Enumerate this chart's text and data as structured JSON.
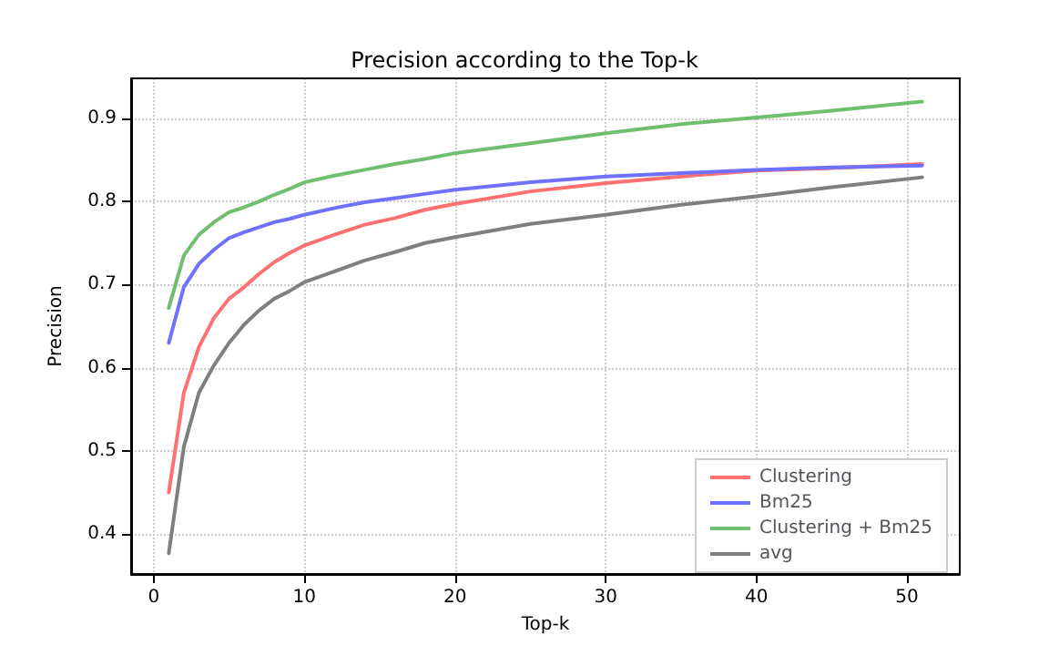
{
  "chart_data": {
    "type": "line",
    "title": "Precision according to the Top-k",
    "xlabel": "Top-k",
    "ylabel": "Precision",
    "x": [
      1,
      2,
      3,
      4,
      5,
      6,
      7,
      8,
      9,
      10,
      12,
      14,
      16,
      18,
      20,
      25,
      30,
      35,
      40,
      45,
      51
    ],
    "series": [
      {
        "name": "Clustering",
        "color": "#ff7070",
        "values": [
          0.45,
          0.57,
          0.625,
          0.66,
          0.683,
          0.697,
          0.713,
          0.727,
          0.738,
          0.747,
          0.76,
          0.772,
          0.78,
          0.79,
          0.797,
          0.812,
          0.822,
          0.83,
          0.837,
          0.84,
          0.845
        ]
      },
      {
        "name": "Bm25",
        "color": "#7070ff",
        "values": [
          0.63,
          0.697,
          0.725,
          0.742,
          0.756,
          0.763,
          0.769,
          0.775,
          0.779,
          0.784,
          0.792,
          0.799,
          0.804,
          0.809,
          0.814,
          0.823,
          0.83,
          0.834,
          0.838,
          0.841,
          0.843
        ]
      },
      {
        "name": "Clustering + Bm25",
        "color": "#70bf70",
        "values": [
          0.672,
          0.735,
          0.76,
          0.775,
          0.787,
          0.793,
          0.8,
          0.808,
          0.815,
          0.823,
          0.831,
          0.838,
          0.845,
          0.851,
          0.858,
          0.87,
          0.882,
          0.893,
          0.901,
          0.909,
          0.92
        ]
      },
      {
        "name": "avg",
        "color": "#7f7f7f",
        "values": [
          0.377,
          0.505,
          0.57,
          0.603,
          0.63,
          0.652,
          0.669,
          0.683,
          0.692,
          0.703,
          0.716,
          0.729,
          0.739,
          0.75,
          0.757,
          0.773,
          0.784,
          0.796,
          0.806,
          0.817,
          0.829
        ]
      }
    ],
    "xlim": [
      -1.5,
      53.5
    ],
    "xticks": [
      0,
      10,
      20,
      30,
      40,
      50
    ],
    "ylim": [
      0.352,
      0.948
    ],
    "yticks": [
      0.4,
      0.5,
      0.6,
      0.7,
      0.8,
      0.9
    ],
    "grid": true,
    "legend": "bottom right",
    "marker": "none",
    "line_style": "solid"
  }
}
